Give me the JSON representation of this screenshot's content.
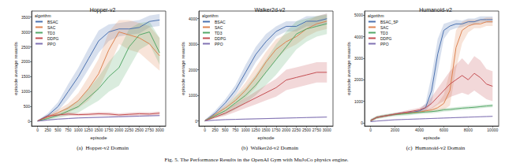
{
  "caption": "Fig. 5. The Performance Results in the OpenAI Gym with MuJoCo physics engine.",
  "chart_data": [
    {
      "type": "line",
      "title": "Hopper-v2",
      "caption": "(a)  Hopper-v2 Domain",
      "xlabel": "episode",
      "ylabel": "episode average rewards",
      "legend_title": "algorithm",
      "legend": "upper left",
      "grid": false,
      "xlim": [
        -150,
        3150
      ],
      "xticks": [
        0,
        250,
        500,
        750,
        1000,
        1250,
        1500,
        1750,
        2000,
        2250,
        2500,
        2750,
        3000
      ],
      "ylim": [
        -150,
        3700
      ],
      "yticks": [
        0,
        500,
        1000,
        1500,
        2000,
        2500,
        3000,
        3500
      ],
      "x": [
        0,
        250,
        500,
        750,
        1000,
        1250,
        1500,
        1750,
        2000,
        2250,
        2500,
        2750,
        3000
      ],
      "series": [
        {
          "name": "BSAC",
          "color": "#4c72b0",
          "values": [
            20,
            200,
            500,
            1000,
            1500,
            2100,
            2700,
            3000,
            3100,
            3100,
            3150,
            3350,
            3400
          ],
          "lower": [
            0,
            120,
            350,
            750,
            1200,
            1750,
            2300,
            2700,
            2850,
            2900,
            2950,
            3150,
            3200
          ],
          "upper": [
            40,
            280,
            650,
            1250,
            1800,
            2450,
            3050,
            3250,
            3300,
            3350,
            3400,
            3550,
            3600
          ]
        },
        {
          "name": "SAC",
          "color": "#dd8452",
          "values": [
            20,
            150,
            300,
            450,
            700,
            1100,
            1600,
            2400,
            3000,
            2900,
            2800,
            2600,
            2200
          ],
          "lower": [
            0,
            80,
            200,
            300,
            450,
            700,
            1100,
            1800,
            2600,
            2400,
            2300,
            2000,
            1700
          ],
          "upper": [
            40,
            220,
            400,
            600,
            950,
            1500,
            2100,
            3000,
            3400,
            3400,
            3300,
            3200,
            2800
          ]
        },
        {
          "name": "TD3",
          "color": "#55a868",
          "values": [
            20,
            100,
            200,
            350,
            500,
            800,
            1100,
            1500,
            1800,
            2500,
            2900,
            3000,
            2300
          ],
          "lower": [
            0,
            50,
            120,
            200,
            300,
            500,
            700,
            1000,
            1200,
            1800,
            2400,
            2600,
            1900
          ],
          "upper": [
            40,
            150,
            280,
            500,
            700,
            1100,
            1500,
            2000,
            2400,
            3100,
            3300,
            3350,
            2800
          ]
        },
        {
          "name": "DDPG",
          "color": "#c44e52",
          "values": [
            20,
            180,
            220,
            250,
            230,
            240,
            260,
            250,
            220,
            240,
            260,
            250,
            280
          ],
          "lower": [
            0,
            130,
            170,
            190,
            180,
            190,
            200,
            190,
            170,
            180,
            200,
            190,
            220
          ],
          "upper": [
            40,
            230,
            270,
            310,
            280,
            290,
            320,
            310,
            270,
            300,
            320,
            310,
            340
          ]
        },
        {
          "name": "PPO",
          "color": "#8172b3",
          "values": [
            10,
            50,
            80,
            100,
            120,
            130,
            140,
            150,
            160,
            170,
            180,
            190,
            200
          ],
          "lower": [
            0,
            30,
            60,
            80,
            100,
            110,
            120,
            130,
            140,
            150,
            160,
            170,
            180
          ],
          "upper": [
            20,
            70,
            100,
            120,
            140,
            150,
            160,
            170,
            180,
            190,
            200,
            210,
            220
          ]
        }
      ]
    },
    {
      "type": "line",
      "title": "Walker2d-v2",
      "caption": "(b)  Walker2d-v2 Domain",
      "xlabel": "episode",
      "ylabel": "episode average rewards",
      "legend_title": "algorithm",
      "legend": "upper left",
      "grid": false,
      "xlim": [
        -150,
        3150
      ],
      "xticks": [
        0,
        250,
        500,
        750,
        1000,
        1250,
        1500,
        1750,
        2000,
        2250,
        2500,
        2750,
        3000
      ],
      "ylim": [
        -200,
        4300
      ],
      "yticks": [
        0,
        1000,
        2000,
        3000,
        4000
      ],
      "x": [
        0,
        250,
        500,
        750,
        1000,
        1250,
        1500,
        1750,
        2000,
        2250,
        2500,
        2750,
        3000
      ],
      "series": [
        {
          "name": "BSAC",
          "color": "#4c72b0",
          "values": [
            0,
            300,
            700,
            1200,
            1900,
            2600,
            3100,
            3500,
            3700,
            3700,
            3900,
            3900,
            4000
          ],
          "lower": [
            0,
            200,
            550,
            1000,
            1600,
            2300,
            2800,
            3300,
            3500,
            3500,
            3700,
            3700,
            3800
          ],
          "upper": [
            50,
            400,
            850,
            1400,
            2200,
            2900,
            3400,
            3700,
            3900,
            3900,
            4100,
            4100,
            4200
          ]
        },
        {
          "name": "SAC",
          "color": "#dd8452",
          "values": [
            0,
            250,
            500,
            800,
            1200,
            1700,
            2300,
            2800,
            3100,
            3300,
            3600,
            3800,
            3900
          ],
          "lower": [
            0,
            180,
            380,
            600,
            900,
            1300,
            1900,
            2400,
            2800,
            3000,
            3300,
            3500,
            3600
          ],
          "upper": [
            50,
            320,
            620,
            1000,
            1500,
            2100,
            2700,
            3200,
            3400,
            3600,
            3900,
            4100,
            4200
          ]
        },
        {
          "name": "TD3",
          "color": "#55a868",
          "values": [
            0,
            200,
            400,
            700,
            1000,
            1400,
            1900,
            2400,
            2900,
            3400,
            3600,
            3700,
            3800
          ],
          "lower": [
            0,
            120,
            250,
            450,
            700,
            1000,
            1400,
            1800,
            2300,
            2800,
            3100,
            3300,
            3400
          ],
          "upper": [
            50,
            280,
            550,
            950,
            1300,
            1800,
            2400,
            3000,
            3500,
            3900,
            4000,
            4100,
            4150
          ]
        },
        {
          "name": "DDPG",
          "color": "#c44e52",
          "values": [
            0,
            150,
            300,
            500,
            700,
            900,
            1100,
            1300,
            1600,
            1700,
            1800,
            1900,
            1900
          ],
          "lower": [
            0,
            100,
            200,
            350,
            500,
            650,
            800,
            950,
            1200,
            1300,
            1400,
            1500,
            1500
          ],
          "upper": [
            50,
            200,
            400,
            650,
            900,
            1150,
            1400,
            1650,
            2000,
            2100,
            2200,
            2300,
            2300
          ]
        },
        {
          "name": "PPO",
          "color": "#8172b3",
          "values": [
            0,
            30,
            50,
            60,
            70,
            80,
            90,
            100,
            110,
            120,
            130,
            140,
            150
          ],
          "lower": [
            0,
            10,
            30,
            40,
            50,
            60,
            70,
            80,
            90,
            100,
            110,
            120,
            130
          ],
          "upper": [
            20,
            50,
            70,
            80,
            90,
            100,
            110,
            120,
            130,
            140,
            150,
            160,
            170
          ]
        }
      ]
    },
    {
      "type": "line",
      "title": "Humanoid-v2",
      "caption": "(c)  Humanoid-v2 Domain",
      "xlabel": "episode",
      "ylabel": "episode average rewards",
      "legend_title": "algorithm",
      "legend": "upper left",
      "grid": false,
      "xlim": [
        -500,
        10500
      ],
      "xticks": [
        0,
        2000,
        4000,
        6000,
        8000,
        10000
      ],
      "ylim": [
        -150,
        5200
      ],
      "yticks": [
        0,
        1000,
        2000,
        3000,
        4000,
        5000
      ],
      "x": [
        0,
        500,
        1000,
        1500,
        2000,
        2500,
        3000,
        3500,
        4000,
        4500,
        5000,
        5500,
        6000,
        6500,
        7000,
        7500,
        8000,
        8500,
        9000,
        9500,
        10000
      ],
      "series": [
        {
          "name": "BSAC_5P",
          "color": "#4c72b0",
          "values": [
            100,
            250,
            300,
            350,
            400,
            450,
            480,
            500,
            550,
            700,
            1500,
            3200,
            4300,
            4500,
            4600,
            4600,
            4700,
            4700,
            4800,
            4800,
            4800
          ],
          "lower": [
            50,
            200,
            250,
            300,
            350,
            400,
            430,
            450,
            480,
            550,
            900,
            2400,
            3900,
            4300,
            4400,
            4450,
            4550,
            4550,
            4650,
            4650,
            4650
          ],
          "upper": [
            150,
            300,
            350,
            400,
            450,
            500,
            530,
            550,
            620,
            900,
            2200,
            3900,
            4600,
            4700,
            4800,
            4750,
            4850,
            4850,
            4950,
            4950,
            4950
          ]
        },
        {
          "name": "SAC",
          "color": "#dd8452",
          "values": [
            100,
            250,
            300,
            350,
            400,
            430,
            450,
            480,
            500,
            550,
            600,
            700,
            900,
            1500,
            3500,
            4300,
            4500,
            4600,
            4600,
            4700,
            4700
          ],
          "lower": [
            50,
            200,
            250,
            300,
            350,
            380,
            400,
            430,
            450,
            480,
            500,
            550,
            600,
            800,
            2500,
            3700,
            4200,
            4400,
            4400,
            4500,
            4500
          ],
          "upper": [
            150,
            300,
            350,
            400,
            450,
            480,
            500,
            530,
            550,
            620,
            700,
            900,
            1300,
            2400,
            4300,
            4700,
            4800,
            4800,
            4800,
            4900,
            4900
          ]
        },
        {
          "name": "TD3",
          "color": "#55a868",
          "values": [
            100,
            250,
            300,
            350,
            380,
            400,
            420,
            450,
            480,
            500,
            520,
            550,
            600,
            620,
            650,
            680,
            700,
            720,
            750,
            780,
            800
          ],
          "lower": [
            20,
            170,
            220,
            270,
            300,
            320,
            340,
            370,
            400,
            420,
            440,
            470,
            520,
            540,
            570,
            600,
            620,
            640,
            670,
            700,
            720
          ],
          "upper": [
            180,
            330,
            380,
            430,
            460,
            480,
            500,
            530,
            560,
            580,
            600,
            630,
            680,
            700,
            730,
            760,
            780,
            800,
            830,
            860,
            880
          ]
        },
        {
          "name": "DDPG",
          "color": "#c44e52",
          "values": [
            100,
            250,
            300,
            350,
            400,
            450,
            500,
            550,
            600,
            700,
            900,
            1200,
            1500,
            1800,
            2000,
            2200,
            2000,
            2300,
            2100,
            1800,
            1700
          ],
          "lower": [
            50,
            200,
            250,
            300,
            340,
            380,
            420,
            460,
            500,
            550,
            650,
            850,
            1000,
            1200,
            1300,
            1400,
            1300,
            1500,
            1300,
            1100,
            1000
          ],
          "upper": [
            150,
            300,
            350,
            400,
            460,
            520,
            580,
            640,
            700,
            850,
            1200,
            1600,
            2000,
            2400,
            2700,
            3000,
            2700,
            3100,
            2900,
            2500,
            2400
          ]
        },
        {
          "name": "PPO",
          "color": "#8172b3",
          "values": [
            50,
            80,
            100,
            120,
            140,
            150,
            160,
            170,
            180,
            190,
            200,
            210,
            220,
            230,
            240,
            250,
            260,
            270,
            280,
            290,
            300
          ],
          "lower": [
            30,
            60,
            80,
            100,
            120,
            130,
            140,
            150,
            160,
            170,
            180,
            190,
            200,
            210,
            220,
            230,
            240,
            250,
            260,
            270,
            280
          ],
          "upper": [
            70,
            100,
            120,
            140,
            160,
            170,
            180,
            190,
            200,
            210,
            220,
            230,
            240,
            250,
            260,
            270,
            280,
            290,
            300,
            310,
            320
          ]
        }
      ]
    }
  ]
}
